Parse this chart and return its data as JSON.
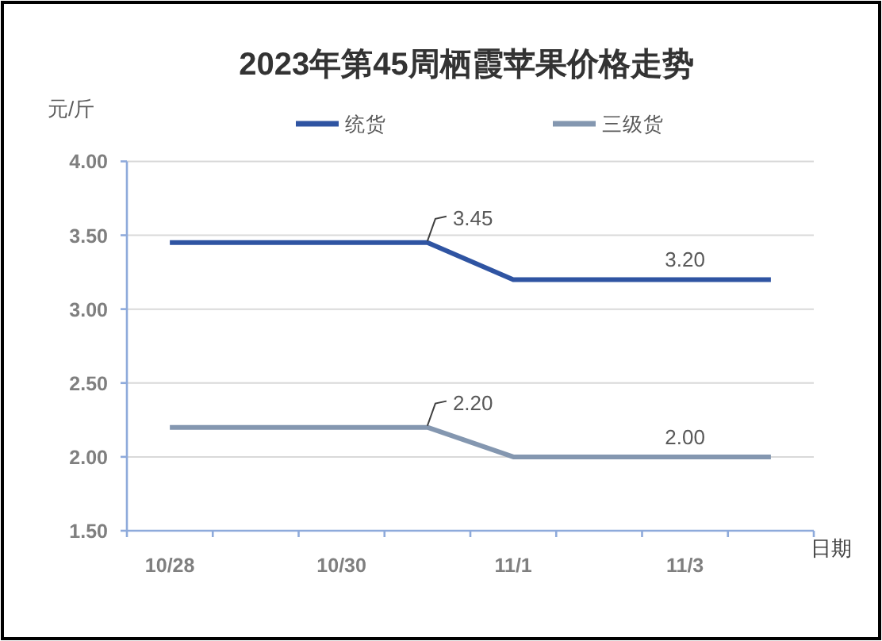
{
  "chart_data": {
    "type": "line",
    "title": "2023年第45周栖霞苹果价格走势",
    "ylabel": "元/斤",
    "xlabel": "日期",
    "categories": [
      "10/28",
      null,
      "10/30",
      null,
      "11/1",
      null,
      "11/3",
      null
    ],
    "series": [
      {
        "name": "统货",
        "color": "#2f54a2",
        "values": [
          3.45,
          3.45,
          3.45,
          3.45,
          3.2,
          3.2,
          3.2,
          3.2
        ],
        "value_labels": [
          null,
          null,
          null,
          "3.45",
          null,
          null,
          "3.20",
          null
        ]
      },
      {
        "name": "三级货",
        "color": "#8497b0",
        "values": [
          2.2,
          2.2,
          2.2,
          2.2,
          2.0,
          2.0,
          2.0,
          2.0
        ],
        "value_labels": [
          null,
          null,
          null,
          "2.20",
          null,
          null,
          "2.00",
          null
        ]
      }
    ],
    "ylim": [
      1.5,
      4
    ],
    "yticks": [
      {
        "value": 1.5,
        "label": "1.50"
      },
      {
        "value": 2,
        "label": "2.00"
      },
      {
        "value": 2.5,
        "label": "2.50"
      },
      {
        "value": 3,
        "label": "3.00"
      },
      {
        "value": 3.5,
        "label": "3.50"
      },
      {
        "value": 4,
        "label": "4.00"
      }
    ],
    "grid": "y",
    "legend": "top"
  }
}
